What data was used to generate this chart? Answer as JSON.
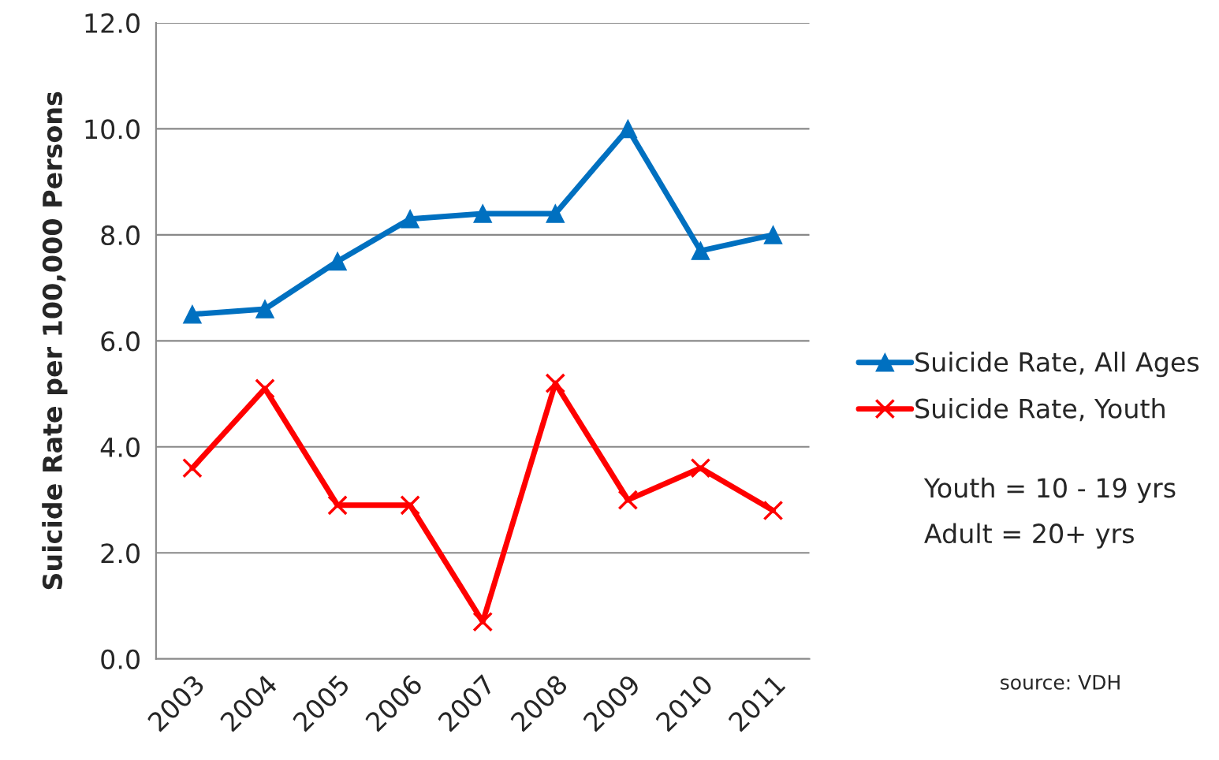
{
  "chart_data": {
    "type": "line",
    "ylabel": "Suicide Rate per 100,000 Persons",
    "categories": [
      "2003",
      "2004",
      "2005",
      "2006",
      "2007",
      "2008",
      "2009",
      "2010",
      "2011"
    ],
    "series": [
      {
        "name": "Suicide Rate, All Ages",
        "color": "#0070c0",
        "marker": "triangle",
        "values": [
          6.5,
          6.6,
          7.5,
          8.3,
          8.4,
          8.4,
          10.0,
          7.7,
          8.0
        ]
      },
      {
        "name": "Suicide Rate, Youth",
        "color": "#ff0000",
        "marker": "cross",
        "values": [
          3.6,
          5.1,
          2.9,
          2.9,
          0.7,
          5.2,
          3.0,
          3.6,
          2.8
        ]
      }
    ],
    "ylim": [
      0,
      12
    ],
    "yticks": [
      {
        "value": 0,
        "label": "0.0"
      },
      {
        "value": 2,
        "label": "2.0"
      },
      {
        "value": 4,
        "label": "4.0"
      },
      {
        "value": 6,
        "label": "6.0"
      },
      {
        "value": 8,
        "label": "8.0"
      },
      {
        "value": 10,
        "label": "10.0"
      },
      {
        "value": 12,
        "label": "12.0"
      }
    ],
    "grid": "y",
    "legend": "right",
    "line_style": "solid",
    "annotations": [
      "Youth = 10 - 19 yrs",
      "Adult = 20+ yrs",
      "source: VDH"
    ]
  }
}
